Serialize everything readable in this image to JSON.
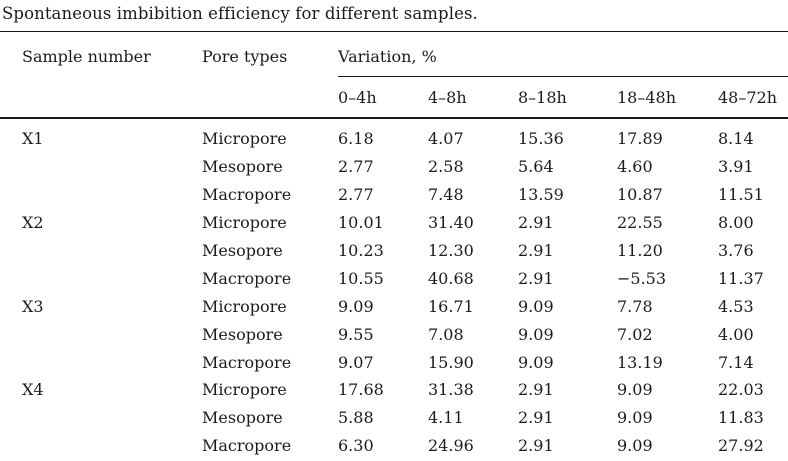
{
  "title": "Spontaneous imbibition efficiency for different samples.",
  "colors": {
    "background": "#ffffff",
    "text": "#1b1b1b",
    "rule": "#1b1b1b"
  },
  "table": {
    "columns": {
      "sample": "Sample number",
      "pore": "Pore types",
      "variation_group": "Variation, %"
    },
    "time_columns": [
      "0–4h",
      "4–8h",
      "8–18h",
      "18–48h",
      "48–72h"
    ],
    "groups": [
      {
        "sample": "X1",
        "rows": [
          {
            "pore": "Micropore",
            "values": [
              "6.18",
              "4.07",
              "15.36",
              "17.89",
              "8.14"
            ]
          },
          {
            "pore": "Mesopore",
            "values": [
              "2.77",
              "2.58",
              "5.64",
              "4.60",
              "3.91"
            ]
          },
          {
            "pore": "Macropore",
            "values": [
              "2.77",
              "7.48",
              "13.59",
              "10.87",
              "11.51"
            ]
          }
        ]
      },
      {
        "sample": "X2",
        "rows": [
          {
            "pore": "Micropore",
            "values": [
              "10.01",
              "31.40",
              "2.91",
              "22.55",
              "8.00"
            ]
          },
          {
            "pore": "Mesopore",
            "values": [
              "10.23",
              "12.30",
              "2.91",
              "11.20",
              "3.76"
            ]
          },
          {
            "pore": "Macropore",
            "values": [
              "10.55",
              "40.68",
              "2.91",
              "−5.53",
              "11.37"
            ]
          }
        ]
      },
      {
        "sample": "X3",
        "rows": [
          {
            "pore": "Micropore",
            "values": [
              "9.09",
              "16.71",
              "9.09",
              "7.78",
              "4.53"
            ]
          },
          {
            "pore": "Mesopore",
            "values": [
              "9.55",
              "7.08",
              "9.09",
              "7.02",
              "4.00"
            ]
          },
          {
            "pore": "Macropore",
            "values": [
              "9.07",
              "15.90",
              "9.09",
              "13.19",
              "7.14"
            ]
          }
        ]
      },
      {
        "sample": "X4",
        "rows": [
          {
            "pore": "Micropore",
            "values": [
              "17.68",
              "31.38",
              "2.91",
              "9.09",
              "22.03"
            ]
          },
          {
            "pore": "Mesopore",
            "values": [
              "5.88",
              "4.11",
              "2.91",
              "9.09",
              "11.83"
            ]
          },
          {
            "pore": "Macropore",
            "values": [
              "6.30",
              "24.96",
              "2.91",
              "9.09",
              "27.92"
            ]
          }
        ]
      }
    ]
  }
}
